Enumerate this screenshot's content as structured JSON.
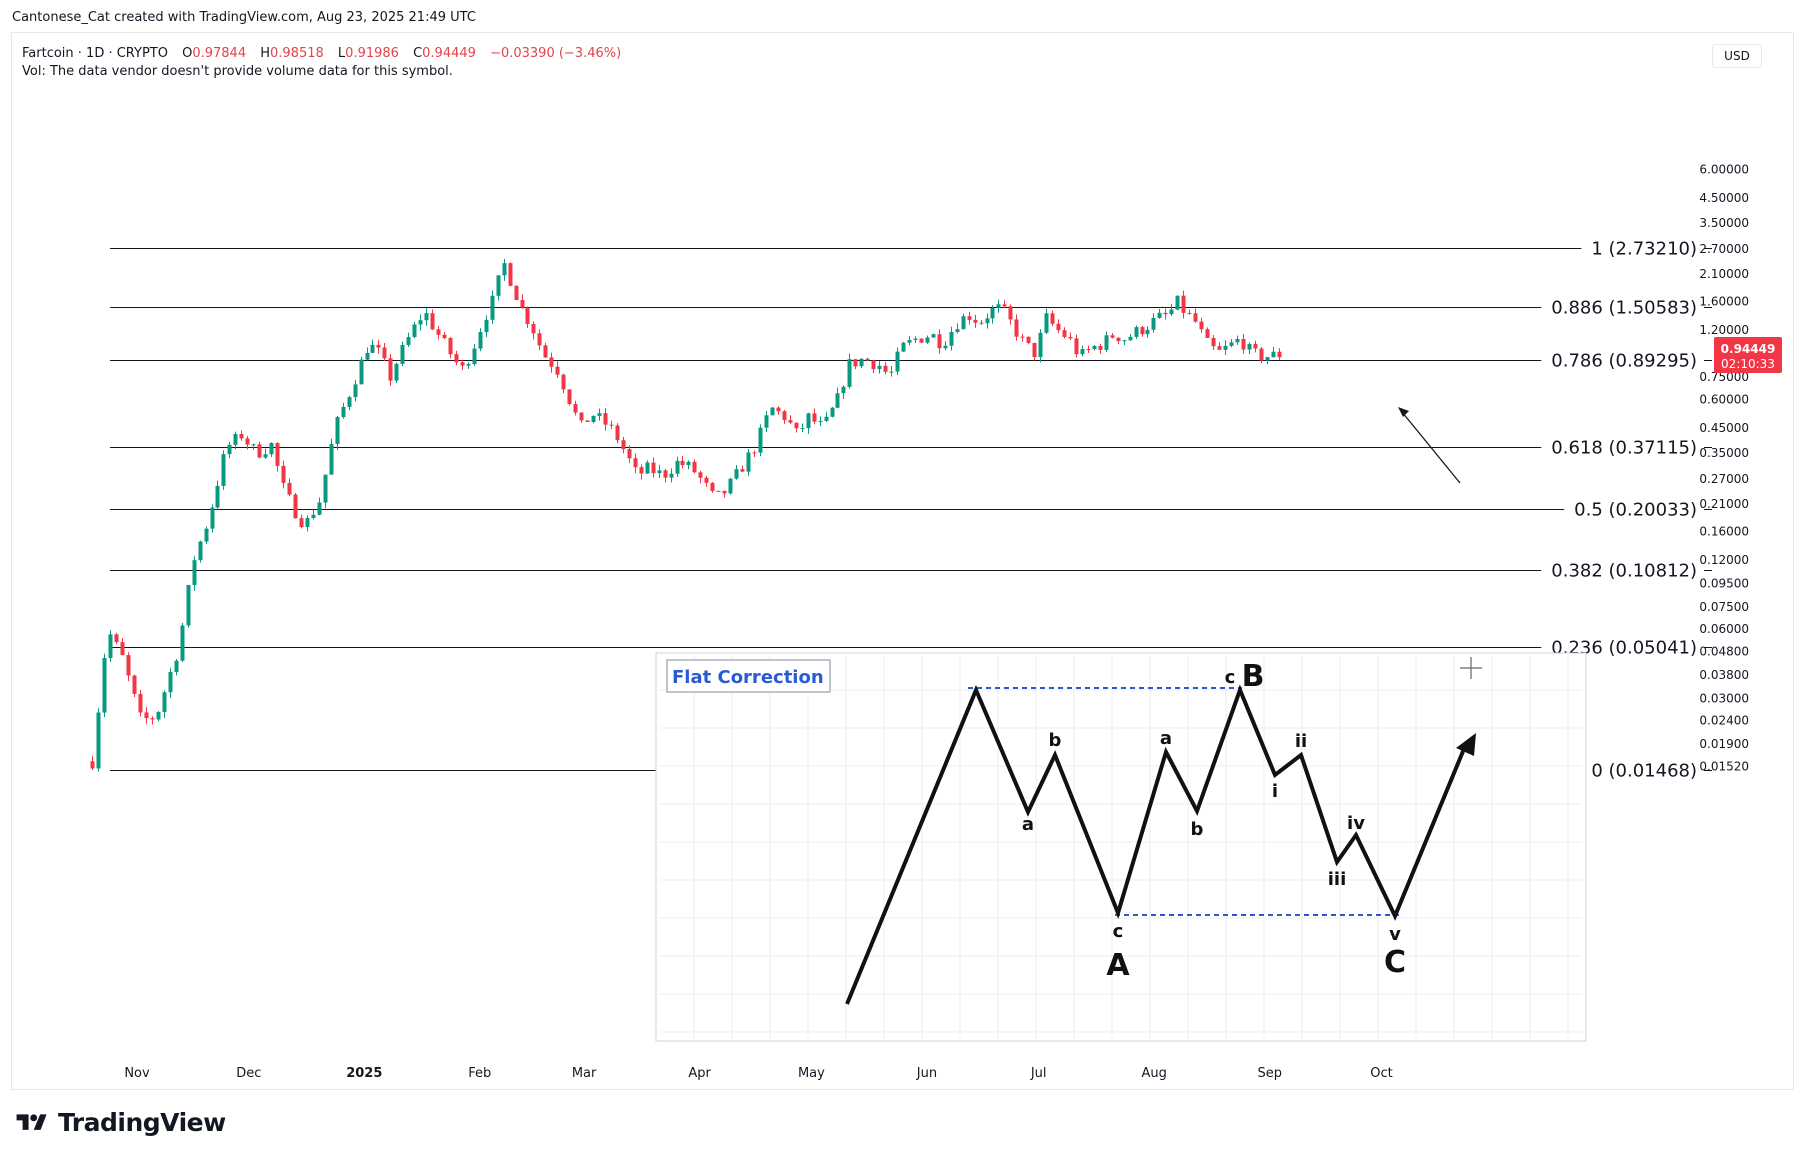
{
  "header": {
    "credit": "Cantonese_Cat created with TradingView.com, Aug 23, 2025 21:49 UTC"
  },
  "legend": {
    "symbol": "Fartcoin · 1D · CRYPTO",
    "o_label": "O",
    "o_value": "0.97844",
    "h_label": "H",
    "h_value": "0.98518",
    "l_label": "L",
    "l_value": "0.91986",
    "c_label": "C",
    "c_value": "0.94449",
    "change": "−0.03390 (−3.46%)",
    "volume_note": "Vol: The data vendor doesn't provide volume data for this symbol."
  },
  "price_axis": {
    "currency": "USD",
    "last_price": "0.94449",
    "countdown": "02:10:33",
    "last_price_color": "#f23645"
  },
  "brand": {
    "name": "TradingView"
  },
  "chart_data": {
    "type": "candlestick",
    "y_scale": "log",
    "ylim": [
      0.0152,
      7.5
    ],
    "y_ticks": [
      "6.00000",
      "4.50000",
      "3.50000",
      "2.70000",
      "2.10000",
      "1.60000",
      "1.20000",
      "0.75000",
      "0.60000",
      "0.45000",
      "0.35000",
      "0.27000",
      "0.21000",
      "0.16000",
      "0.12000",
      "0.09500",
      "0.07500",
      "0.06000",
      "0.04800",
      "0.03800",
      "0.03000",
      "0.02400",
      "0.01900",
      "0.01520"
    ],
    "x_ticks": [
      "Nov",
      "Dec",
      "2025",
      "Feb",
      "Mar",
      "Apr",
      "May",
      "Jun",
      "Jul",
      "Aug",
      "Sep",
      "Oct"
    ],
    "colors": {
      "up": "#089981",
      "down": "#f23645"
    },
    "fib_levels": [
      {
        "label": "1 (2.73210)",
        "value": 2.7321
      },
      {
        "label": "0.886 (1.50583)",
        "value": 1.50583
      },
      {
        "label": "0.786 (0.89295)",
        "value": 0.89295
      },
      {
        "label": "0.618 (0.37115)",
        "value": 0.37115
      },
      {
        "label": "0.5 (0.20033)",
        "value": 0.20033
      },
      {
        "label": "0.382 (0.10812)",
        "value": 0.10812
      },
      {
        "label": "0.236 (0.05041)",
        "value": 0.05041
      },
      {
        "label": "0 (0.01468)",
        "value": 0.01468
      }
    ],
    "price_path": [
      {
        "date": "2024-10-20",
        "price": 0.016
      },
      {
        "date": "2024-10-24",
        "price": 0.06
      },
      {
        "date": "2024-10-28",
        "price": 0.045
      },
      {
        "date": "2024-11-02",
        "price": 0.024
      },
      {
        "date": "2024-11-06",
        "price": 0.025
      },
      {
        "date": "2024-11-12",
        "price": 0.05
      },
      {
        "date": "2024-11-16",
        "price": 0.12
      },
      {
        "date": "2024-11-20",
        "price": 0.18
      },
      {
        "date": "2024-11-25",
        "price": 0.37
      },
      {
        "date": "2024-11-29",
        "price": 0.42
      },
      {
        "date": "2024-12-03",
        "price": 0.35
      },
      {
        "date": "2024-12-07",
        "price": 0.38
      },
      {
        "date": "2024-12-10",
        "price": 0.25
      },
      {
        "date": "2024-12-13",
        "price": 0.2
      },
      {
        "date": "2024-12-16",
        "price": 0.17
      },
      {
        "date": "2024-12-20",
        "price": 0.22
      },
      {
        "date": "2024-12-24",
        "price": 0.45
      },
      {
        "date": "2024-12-28",
        "price": 0.65
      },
      {
        "date": "2025-01-02",
        "price": 1.05
      },
      {
        "date": "2025-01-05",
        "price": 0.95
      },
      {
        "date": "2025-01-08",
        "price": 0.75
      },
      {
        "date": "2025-01-10",
        "price": 0.9
      },
      {
        "date": "2025-01-14",
        "price": 1.2
      },
      {
        "date": "2025-01-17",
        "price": 1.45
      },
      {
        "date": "2025-01-20",
        "price": 1.2
      },
      {
        "date": "2025-01-24",
        "price": 0.95
      },
      {
        "date": "2025-01-27",
        "price": 0.8
      },
      {
        "date": "2025-01-30",
        "price": 1.0
      },
      {
        "date": "2025-02-02",
        "price": 1.35
      },
      {
        "date": "2025-02-05",
        "price": 1.7
      },
      {
        "date": "2025-02-07",
        "price": 2.4
      },
      {
        "date": "2025-02-09",
        "price": 2.0
      },
      {
        "date": "2025-02-12",
        "price": 1.5
      },
      {
        "date": "2025-02-15",
        "price": 1.25
      },
      {
        "date": "2025-02-18",
        "price": 0.95
      },
      {
        "date": "2025-02-22",
        "price": 0.8
      },
      {
        "date": "2025-02-25",
        "price": 0.6
      },
      {
        "date": "2025-02-28",
        "price": 0.45
      },
      {
        "date": "2025-03-03",
        "price": 0.52
      },
      {
        "date": "2025-03-06",
        "price": 0.48
      },
      {
        "date": "2025-03-09",
        "price": 0.43
      },
      {
        "date": "2025-03-12",
        "price": 0.35
      },
      {
        "date": "2025-03-15",
        "price": 0.28
      },
      {
        "date": "2025-03-18",
        "price": 0.3
      },
      {
        "date": "2025-03-22",
        "price": 0.28
      },
      {
        "date": "2025-03-26",
        "price": 0.32
      },
      {
        "date": "2025-03-30",
        "price": 0.3
      },
      {
        "date": "2025-04-02",
        "price": 0.26
      },
      {
        "date": "2025-04-05",
        "price": 0.22
      },
      {
        "date": "2025-04-08",
        "price": 0.24
      },
      {
        "date": "2025-04-12",
        "price": 0.3
      },
      {
        "date": "2025-04-16",
        "price": 0.38
      },
      {
        "date": "2025-04-20",
        "price": 0.55
      },
      {
        "date": "2025-04-24",
        "price": 0.5
      },
      {
        "date": "2025-04-27",
        "price": 0.42
      },
      {
        "date": "2025-04-30",
        "price": 0.5
      },
      {
        "date": "2025-05-04",
        "price": 0.45
      },
      {
        "date": "2025-05-08",
        "price": 0.6
      },
      {
        "date": "2025-05-11",
        "price": 0.85
      },
      {
        "date": "2025-05-15",
        "price": 0.9
      },
      {
        "date": "2025-05-19",
        "price": 0.85
      },
      {
        "date": "2025-05-22",
        "price": 0.75
      },
      {
        "date": "2025-05-25",
        "price": 1.0
      },
      {
        "date": "2025-05-29",
        "price": 1.1
      },
      {
        "date": "2025-06-02",
        "price": 1.15
      },
      {
        "date": "2025-06-05",
        "price": 1.05
      },
      {
        "date": "2025-06-09",
        "price": 1.3
      },
      {
        "date": "2025-06-12",
        "price": 1.4
      },
      {
        "date": "2025-06-15",
        "price": 1.3
      },
      {
        "date": "2025-06-18",
        "price": 1.45
      },
      {
        "date": "2025-06-21",
        "price": 1.5
      },
      {
        "date": "2025-06-24",
        "price": 1.25
      },
      {
        "date": "2025-06-27",
        "price": 1.05
      },
      {
        "date": "2025-06-30",
        "price": 0.95
      },
      {
        "date": "2025-07-03",
        "price": 1.35
      },
      {
        "date": "2025-07-06",
        "price": 1.2
      },
      {
        "date": "2025-07-09",
        "price": 1.1
      },
      {
        "date": "2025-07-12",
        "price": 0.92
      },
      {
        "date": "2025-07-15",
        "price": 1.0
      },
      {
        "date": "2025-07-18",
        "price": 1.05
      },
      {
        "date": "2025-07-21",
        "price": 1.15
      },
      {
        "date": "2025-07-24",
        "price": 1.1
      },
      {
        "date": "2025-07-27",
        "price": 1.18
      },
      {
        "date": "2025-07-30",
        "price": 1.25
      },
      {
        "date": "2025-08-02",
        "price": 1.35
      },
      {
        "date": "2025-08-05",
        "price": 1.4
      },
      {
        "date": "2025-08-07",
        "price": 1.6
      },
      {
        "date": "2025-08-09",
        "price": 1.45
      },
      {
        "date": "2025-08-12",
        "price": 1.3
      },
      {
        "date": "2025-08-15",
        "price": 1.05
      },
      {
        "date": "2025-08-18",
        "price": 0.95
      },
      {
        "date": "2025-08-21",
        "price": 1.02
      },
      {
        "date": "2025-08-24",
        "price": 1.1
      },
      {
        "date": "2025-08-27",
        "price": 0.95
      },
      {
        "date": "2025-08-30",
        "price": 0.92
      },
      {
        "date": "2025-09-02",
        "price": 0.93
      },
      {
        "date": "2025-09-04",
        "price": 0.944
      }
    ],
    "inset": {
      "title": "Flat Correction",
      "labels": [
        "a",
        "b",
        "c",
        "A",
        "a",
        "b",
        "c",
        "B",
        "i",
        "ii",
        "iii",
        "iv",
        "v",
        "C"
      ]
    }
  }
}
